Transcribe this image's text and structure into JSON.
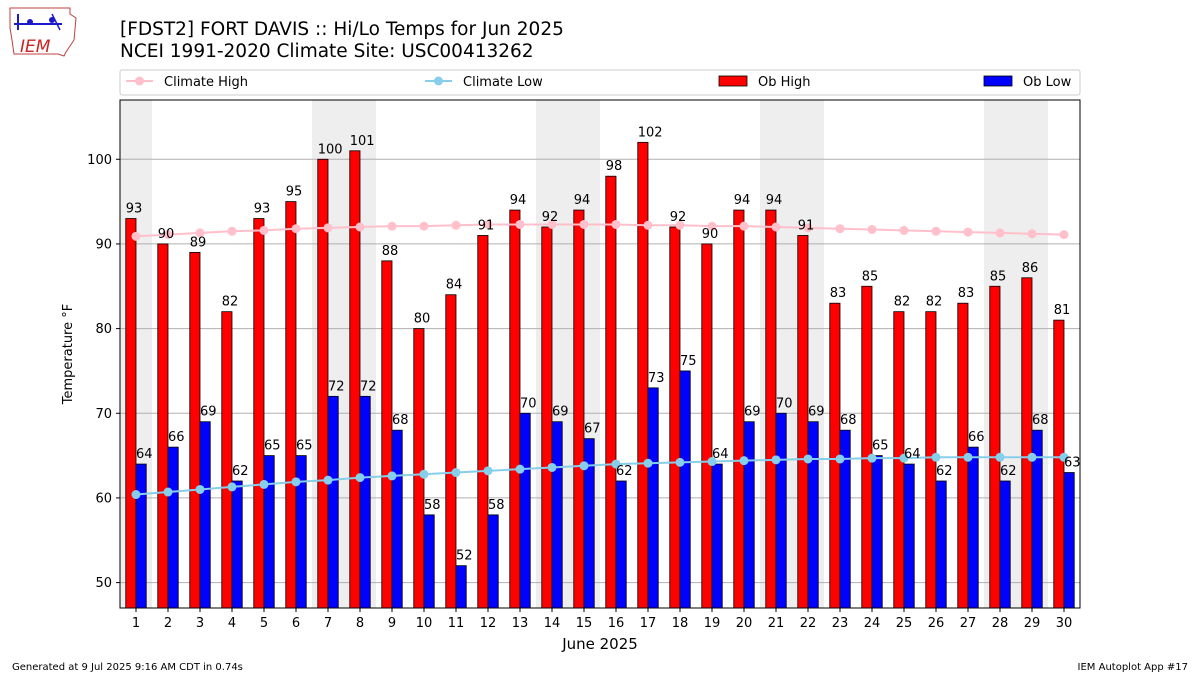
{
  "title": "[FDST2] FORT DAVIS :: Hi/Lo Temps for Jun 2025",
  "subtitle": "NCEI 1991-2020 Climate Site: USC00413262",
  "logo_text": "IEM",
  "footer_left": "Generated at 9 Jul 2025 9:16 AM CDT in 0.74s",
  "footer_right": "IEM Autoplot App #17",
  "colors": {
    "ob_high": "#ff0000",
    "ob_low": "#0000ff",
    "climate_high": "#ffc0cb",
    "climate_low": "#87ceeb",
    "weekend_band": "#eeeeee"
  },
  "chart_data": {
    "type": "bar",
    "xlabel": "June 2025",
    "ylabel": "Temperature °F",
    "ylim": [
      47,
      107
    ],
    "yticks": [
      50,
      60,
      70,
      80,
      90,
      100
    ],
    "grid": "horizontal",
    "legend_position": "top",
    "categories": [
      "1",
      "2",
      "3",
      "4",
      "5",
      "6",
      "7",
      "8",
      "9",
      "10",
      "11",
      "12",
      "13",
      "14",
      "15",
      "16",
      "17",
      "18",
      "19",
      "20",
      "21",
      "22",
      "23",
      "24",
      "25",
      "26",
      "27",
      "28",
      "29",
      "30"
    ],
    "shaded_days": [
      1,
      7,
      8,
      14,
      15,
      21,
      22,
      28,
      29
    ],
    "series": [
      {
        "name": "Climate High",
        "kind": "line",
        "values": [
          90.9,
          91.1,
          91.3,
          91.5,
          91.6,
          91.8,
          91.9,
          92.0,
          92.1,
          92.1,
          92.2,
          92.3,
          92.3,
          92.3,
          92.3,
          92.3,
          92.2,
          92.2,
          92.1,
          92.1,
          92.0,
          91.9,
          91.8,
          91.7,
          91.6,
          91.5,
          91.4,
          91.3,
          91.2,
          91.1
        ]
      },
      {
        "name": "Climate Low",
        "kind": "line",
        "values": [
          60.4,
          60.7,
          61.0,
          61.3,
          61.6,
          61.9,
          62.1,
          62.4,
          62.6,
          62.8,
          63.0,
          63.2,
          63.4,
          63.6,
          63.8,
          64.0,
          64.1,
          64.2,
          64.3,
          64.4,
          64.5,
          64.6,
          64.6,
          64.7,
          64.7,
          64.8,
          64.8,
          64.8,
          64.8,
          64.8
        ]
      },
      {
        "name": "Ob High",
        "kind": "bar",
        "values": [
          93,
          90,
          89,
          82,
          93,
          95,
          100,
          101,
          88,
          80,
          84,
          91,
          94,
          92,
          94,
          98,
          102,
          92,
          90,
          94,
          94,
          91,
          83,
          85,
          82,
          82,
          83,
          85,
          86,
          81
        ]
      },
      {
        "name": "Ob Low",
        "kind": "bar",
        "values": [
          64,
          66,
          69,
          62,
          65,
          65,
          72,
          72,
          68,
          58,
          52,
          58,
          70,
          69,
          67,
          62,
          73,
          75,
          64,
          69,
          70,
          69,
          68,
          65,
          64,
          62,
          66,
          62,
          68,
          63
        ]
      }
    ]
  }
}
